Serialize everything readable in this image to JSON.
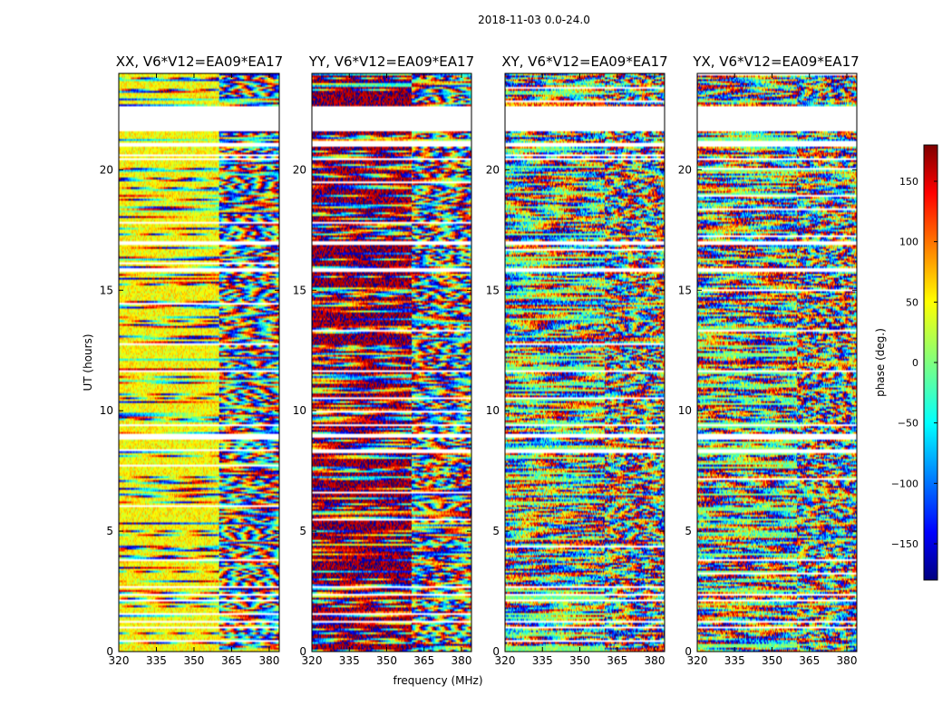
{
  "chart_data": {
    "type": "heatmap",
    "title": "2018-11-03 0.0-24.0",
    "ylabel": "UT (hours)",
    "xlabel": "frequency (MHz)",
    "xlim": [
      320,
      384
    ],
    "ylim": [
      0,
      24
    ],
    "x_ticks": [
      320,
      335,
      350,
      365,
      380
    ],
    "y_ticks": [
      0,
      5,
      10,
      15,
      20
    ],
    "panels": [
      {
        "title": "XX, V6*V12=EA09*EA17",
        "base_phase": 45,
        "noise": 0.35
      },
      {
        "title": "YY, V6*V12=EA09*EA17",
        "base_phase": 170,
        "noise": 0.45
      },
      {
        "title": "XY, V6*V12=EA09*EA17",
        "base_phase": 0,
        "noise": 0.85
      },
      {
        "title": "YX, V6*V12=EA09*EA17",
        "base_phase": 0,
        "noise": 0.85
      }
    ],
    "colorbar": {
      "label": "phase (deg.)",
      "range": [
        -180,
        180
      ],
      "ticks": [
        150,
        100,
        50,
        0,
        -50,
        -100,
        -150
      ],
      "colormap": "jet"
    },
    "data_gaps_hours": [
      [
        21.6,
        22.6
      ],
      [
        21.0,
        21.1
      ],
      [
        20.4,
        20.5
      ],
      [
        16.9,
        17.0
      ],
      [
        15.8,
        15.9
      ],
      [
        11.6,
        11.7
      ],
      [
        8.9,
        9.0
      ],
      [
        8.3,
        8.4
      ],
      [
        2.3,
        2.4
      ],
      [
        1.2,
        1.3
      ]
    ]
  }
}
